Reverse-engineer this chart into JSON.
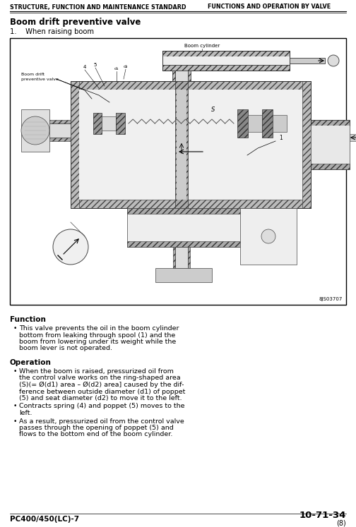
{
  "header_left": "STRUCTURE, FUNCTION AND MAINTENANCE STANDARD",
  "header_right": "FUNCTIONS AND OPERATION BY VALVE",
  "title": "Boom drift preventive valve",
  "subtitle": "1.    When raising boom",
  "diagram_code": "8JS03707",
  "function_header": "Function",
  "operation_header": "Operation",
  "func_lines": [
    "This valve prevents the oil in the boom cylinder",
    "bottom from leaking through spool (1) and the",
    "boom from lowering under its weight while the",
    "boom lever is not operated."
  ],
  "op1_lines": [
    "When the boom is raised, pressurized oil from",
    "the control valve works on the ring-shaped area",
    "(S)(= Ø(d1) area – Ø(d2) area] caused by the dif-",
    "ference between outside diameter (d1) of poppet",
    "(5) and seat diameter (d2) to move it to the left."
  ],
  "op2_lines": [
    "Contracts spring (4) and poppet (5) moves to the",
    "left."
  ],
  "op3_lines": [
    "As a result, pressurized oil from the control valve",
    "passes through the opening of poppet (5) and",
    "flows to the bottom end of the boom cylinder."
  ],
  "footer_left": "PC400/450(LC)-7",
  "footer_right": "10-71-34",
  "footer_right_sub": "(8)",
  "bg_color": "#ffffff",
  "text_color": "#000000",
  "diagram_bg": "#ffffff"
}
